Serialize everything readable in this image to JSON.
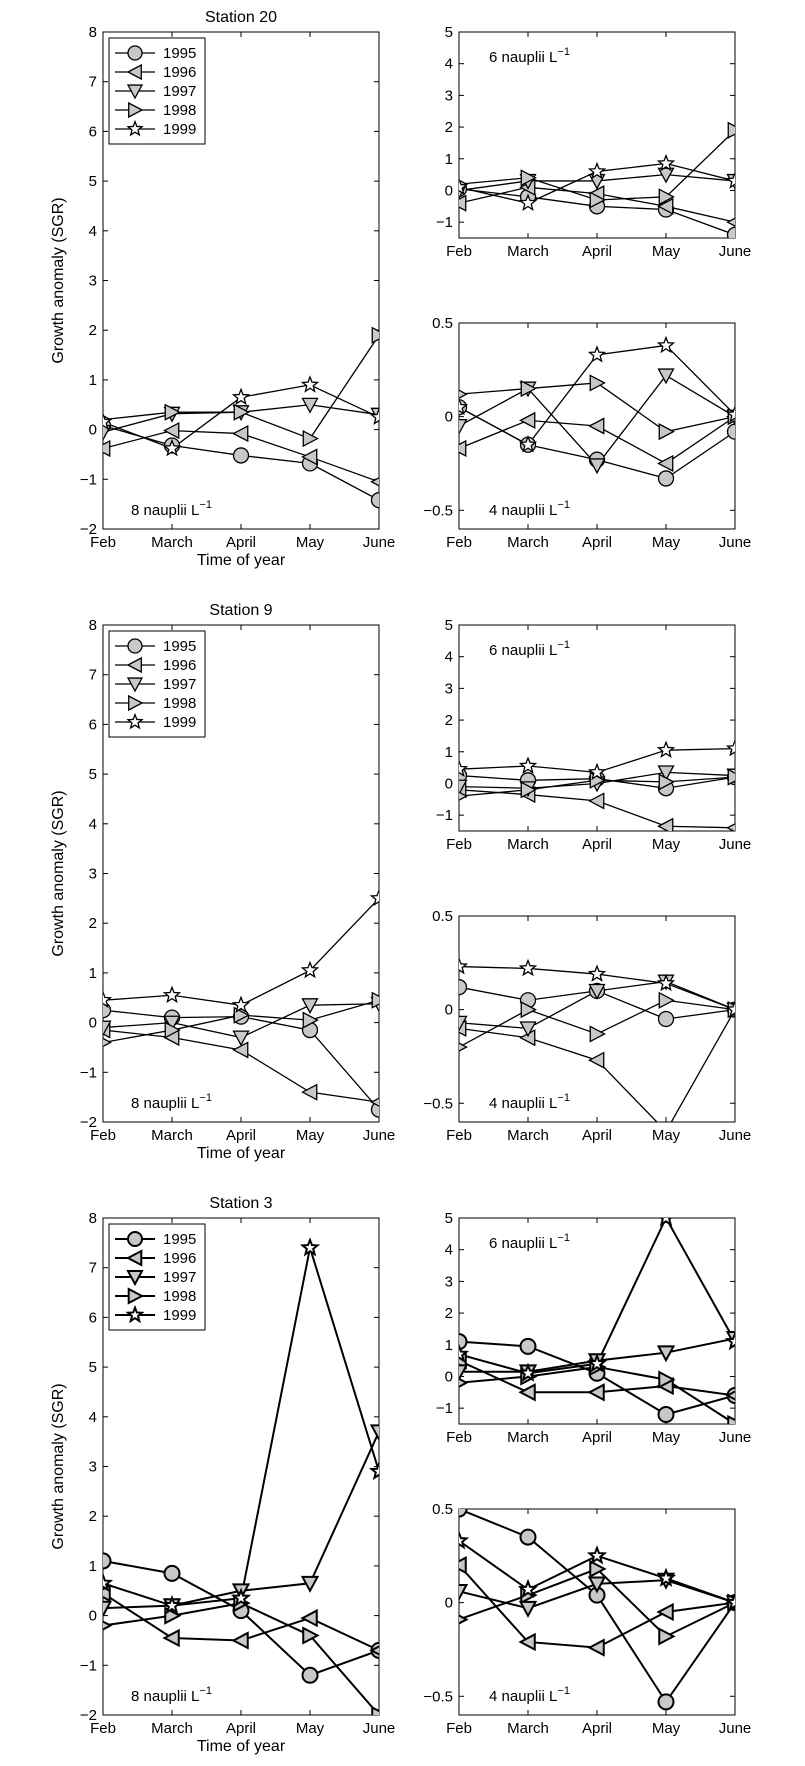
{
  "months": [
    "Feb",
    "March",
    "April",
    "May",
    "June"
  ],
  "years": [
    "1995",
    "1996",
    "1997",
    "1998",
    "1999"
  ],
  "xlabel": "Time of year",
  "ylabel": "Growth anomaly (SGR)",
  "chart_data": [
    {
      "type": "line",
      "station": "Station 20",
      "annotation": "8 nauplii L",
      "ylim": [
        -2,
        8
      ],
      "yticks": [
        -2,
        -1,
        0,
        1,
        2,
        3,
        4,
        5,
        6,
        7,
        8
      ],
      "legend": true,
      "series": [
        {
          "name": "1995",
          "marker": "circle",
          "values": [
            0.08,
            -0.32,
            -0.52,
            -0.68,
            -1.42
          ]
        },
        {
          "name": "1996",
          "marker": "tri-left",
          "values": [
            -0.38,
            -0.02,
            -0.08,
            -0.55,
            -1.05
          ]
        },
        {
          "name": "1997",
          "marker": "tri-down",
          "values": [
            -0.05,
            0.32,
            0.35,
            0.5,
            0.3
          ]
        },
        {
          "name": "1998",
          "marker": "tri-right",
          "values": [
            0.2,
            0.35,
            0.35,
            -0.18,
            1.9
          ]
        },
        {
          "name": "1999",
          "marker": "star",
          "values": [
            0.15,
            -0.38,
            0.65,
            0.9,
            0.25
          ]
        }
      ]
    },
    {
      "type": "line",
      "station": "",
      "annotation": "6 nauplii L",
      "ylim": [
        -1.5,
        5
      ],
      "yticks": [
        -1,
        0,
        1,
        2,
        3,
        4,
        5
      ],
      "legend": false,
      "series": [
        {
          "name": "1995",
          "marker": "circle",
          "values": [
            0.05,
            -0.2,
            -0.5,
            -0.6,
            -1.4
          ]
        },
        {
          "name": "1996",
          "marker": "tri-left",
          "values": [
            -0.4,
            0.1,
            -0.1,
            -0.5,
            -1.0
          ]
        },
        {
          "name": "1997",
          "marker": "tri-down",
          "values": [
            0.0,
            0.3,
            0.3,
            0.5,
            0.3
          ]
        },
        {
          "name": "1998",
          "marker": "tri-right",
          "values": [
            0.2,
            0.4,
            -0.3,
            -0.2,
            1.9
          ]
        },
        {
          "name": "1999",
          "marker": "star",
          "values": [
            0.1,
            -0.4,
            0.6,
            0.85,
            0.3
          ]
        }
      ]
    },
    {
      "type": "line",
      "station": "",
      "annotation": "4 nauplii L",
      "ylim": [
        -0.6,
        0.5
      ],
      "yticks": [
        -0.5,
        0,
        0.5
      ],
      "legend": false,
      "series": [
        {
          "name": "1995",
          "marker": "circle",
          "values": [
            0.05,
            -0.15,
            -0.23,
            -0.33,
            -0.08
          ]
        },
        {
          "name": "1996",
          "marker": "tri-left",
          "values": [
            -0.17,
            -0.02,
            -0.05,
            -0.25,
            0.0
          ]
        },
        {
          "name": "1997",
          "marker": "tri-down",
          "values": [
            -0.05,
            0.15,
            -0.26,
            0.22,
            0.0
          ]
        },
        {
          "name": "1998",
          "marker": "tri-right",
          "values": [
            0.12,
            0.15,
            0.18,
            -0.08,
            0.0
          ]
        },
        {
          "name": "1999",
          "marker": "star",
          "values": [
            0.05,
            -0.15,
            0.33,
            0.38,
            0.01
          ]
        }
      ]
    },
    {
      "type": "line",
      "station": "Station 9",
      "annotation": "8 nauplii L",
      "ylim": [
        -2,
        8
      ],
      "yticks": [
        -2,
        -1,
        0,
        1,
        2,
        3,
        4,
        5,
        6,
        7,
        8
      ],
      "legend": true,
      "series": [
        {
          "name": "1995",
          "marker": "circle",
          "values": [
            0.25,
            0.1,
            0.12,
            -0.15,
            -1.75
          ]
        },
        {
          "name": "1996",
          "marker": "tri-left",
          "values": [
            -0.15,
            -0.3,
            -0.55,
            -1.4,
            -1.6
          ]
        },
        {
          "name": "1997",
          "marker": "tri-down",
          "values": [
            -0.1,
            0.0,
            -0.3,
            0.35,
            0.38
          ]
        },
        {
          "name": "1998",
          "marker": "tri-right",
          "values": [
            -0.4,
            -0.15,
            0.15,
            0.05,
            0.45
          ]
        },
        {
          "name": "1999",
          "marker": "star",
          "values": [
            0.45,
            0.55,
            0.35,
            1.05,
            2.5
          ]
        }
      ]
    },
    {
      "type": "line",
      "station": "",
      "annotation": "6 nauplii L",
      "ylim": [
        -1.5,
        5
      ],
      "yticks": [
        -1,
        0,
        1,
        2,
        3,
        4,
        5
      ],
      "legend": false,
      "series": [
        {
          "name": "1995",
          "marker": "circle",
          "values": [
            0.25,
            0.1,
            0.15,
            -0.15,
            0.2
          ]
        },
        {
          "name": "1996",
          "marker": "tri-left",
          "values": [
            -0.2,
            -0.35,
            -0.55,
            -1.35,
            -1.4
          ]
        },
        {
          "name": "1997",
          "marker": "tri-down",
          "values": [
            -0.1,
            -0.15,
            0.0,
            0.35,
            0.25
          ]
        },
        {
          "name": "1998",
          "marker": "tri-right",
          "values": [
            -0.4,
            -0.2,
            0.1,
            0.05,
            0.2
          ]
        },
        {
          "name": "1999",
          "marker": "star",
          "values": [
            0.45,
            0.55,
            0.35,
            1.05,
            1.1
          ]
        }
      ]
    },
    {
      "type": "line",
      "station": "",
      "annotation": "4 nauplii L",
      "ylim": [
        -0.6,
        0.5
      ],
      "yticks": [
        -0.5,
        0,
        0.5
      ],
      "legend": false,
      "series": [
        {
          "name": "1995",
          "marker": "circle",
          "values": [
            0.12,
            0.05,
            0.1,
            -0.05,
            0.0
          ]
        },
        {
          "name": "1996",
          "marker": "tri-left",
          "values": [
            -0.1,
            -0.15,
            -0.27,
            -0.65,
            0.0
          ]
        },
        {
          "name": "1997",
          "marker": "tri-down",
          "values": [
            -0.07,
            -0.1,
            0.1,
            0.15,
            0.0
          ]
        },
        {
          "name": "1998",
          "marker": "tri-right",
          "values": [
            -0.2,
            0.0,
            -0.13,
            0.05,
            0.0
          ]
        },
        {
          "name": "1999",
          "marker": "star",
          "values": [
            0.23,
            0.22,
            0.19,
            0.14,
            0.0
          ]
        }
      ]
    },
    {
      "type": "line",
      "station": "Station 3",
      "annotation": "8 nauplii L",
      "ylim": [
        -2,
        8
      ],
      "yticks": [
        -2,
        -1,
        0,
        1,
        2,
        3,
        4,
        5,
        6,
        7,
        8
      ],
      "legend": true,
      "series": [
        {
          "name": "1995",
          "marker": "circle",
          "values": [
            1.1,
            0.85,
            0.1,
            -1.2,
            -0.7
          ]
        },
        {
          "name": "1996",
          "marker": "tri-left",
          "values": [
            0.45,
            -0.45,
            -0.5,
            -0.05,
            -0.7
          ]
        },
        {
          "name": "1997",
          "marker": "tri-down",
          "values": [
            0.15,
            0.2,
            0.5,
            0.65,
            3.7
          ]
        },
        {
          "name": "1998",
          "marker": "tri-right",
          "values": [
            -0.2,
            0.0,
            0.25,
            -0.4,
            -2.0
          ]
        },
        {
          "name": "1999",
          "marker": "star",
          "values": [
            0.65,
            0.2,
            0.35,
            7.4,
            2.9
          ]
        }
      ]
    },
    {
      "type": "line",
      "station": "",
      "annotation": "6 nauplii L",
      "ylim": [
        -1.5,
        5
      ],
      "yticks": [
        -1,
        0,
        1,
        2,
        3,
        4,
        5
      ],
      "legend": false,
      "series": [
        {
          "name": "1995",
          "marker": "circle",
          "values": [
            1.1,
            0.95,
            0.1,
            -1.2,
            -0.6
          ]
        },
        {
          "name": "1996",
          "marker": "tri-left",
          "values": [
            0.5,
            -0.5,
            -0.5,
            -0.3,
            -0.6
          ]
        },
        {
          "name": "1997",
          "marker": "tri-down",
          "values": [
            0.15,
            0.15,
            0.5,
            0.75,
            1.2
          ]
        },
        {
          "name": "1998",
          "marker": "tri-right",
          "values": [
            -0.2,
            0.0,
            0.3,
            -0.1,
            -1.5
          ]
        },
        {
          "name": "1999",
          "marker": "star",
          "values": [
            0.7,
            0.1,
            0.4,
            5.0,
            1.1
          ]
        }
      ]
    },
    {
      "type": "line",
      "station": "",
      "annotation": "4 nauplii L",
      "ylim": [
        -0.6,
        0.5
      ],
      "yticks": [
        -0.5,
        0,
        0.5
      ],
      "legend": false,
      "series": [
        {
          "name": "1995",
          "marker": "circle",
          "values": [
            0.5,
            0.35,
            0.04,
            -0.53,
            0.0
          ]
        },
        {
          "name": "1996",
          "marker": "tri-left",
          "values": [
            0.2,
            -0.21,
            -0.24,
            -0.05,
            0.0
          ]
        },
        {
          "name": "1997",
          "marker": "tri-down",
          "values": [
            0.06,
            -0.03,
            0.1,
            0.12,
            0.0
          ]
        },
        {
          "name": "1998",
          "marker": "tri-right",
          "values": [
            -0.09,
            0.04,
            0.18,
            -0.18,
            0.0
          ]
        },
        {
          "name": "1999",
          "marker": "star",
          "values": [
            0.33,
            0.07,
            0.25,
            0.13,
            0.0
          ]
        }
      ]
    }
  ]
}
